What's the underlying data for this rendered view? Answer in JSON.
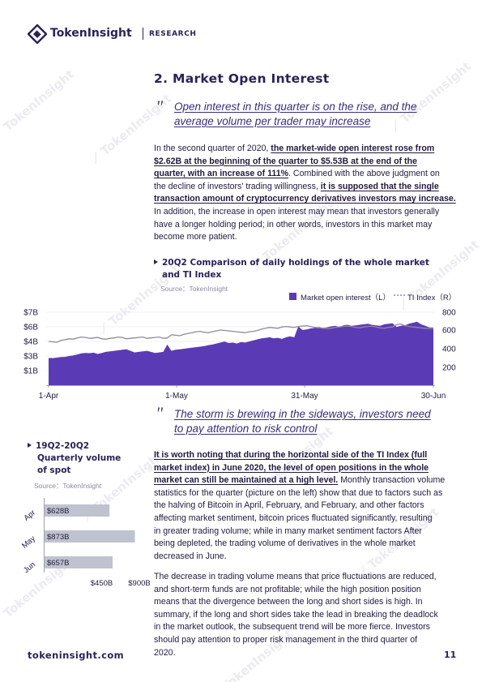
{
  "header": {
    "brand": "TokenInsight",
    "section": "RESEARCH",
    "colors": {
      "brand": "#2c2257"
    }
  },
  "section_title": "2. Market Open Interest",
  "quote1": {
    "line1": "Open interest in this quarter is on the rise, and the",
    "line2": "average volume per trader may increase"
  },
  "para1": {
    "l1_a": "In the second quarter of 2020, ",
    "l1_b": "the market-wide open interest rose from",
    "l2": "$2.62B at the beginning of the quarter to $5.53B at the end of the",
    "l3_a": "quarter, with an increase of 111%",
    "l3_b": ". Combined with the above judgment on",
    "l4_a": "the decline of investors' trading willingness, ",
    "l4_b": "it is supposed that the single",
    "l5": "transaction amount of cryptocurrency derivatives investors may increase.",
    "l6": "In addition, the increase in open interest may mean that investors generally",
    "l7": "have a longer holding period; in other words, investors in this market may",
    "l8": "become more patient."
  },
  "chart1": {
    "title_line1": "20Q2 Comparison of daily holdings of the whole market",
    "title_line2": "and TI Index",
    "source": "Source：TokenInsight",
    "legend_oi": "Market open interest（L）",
    "legend_ti": "TI Index（R）",
    "colors": {
      "area": "#5b3bb5",
      "line": "#8e8b98"
    }
  },
  "chart_data": [
    {
      "type": "area",
      "title": "20Q2 Comparison of daily holdings of the whole market and TI Index",
      "x_ticks": [
        "1-Apr",
        "1-May",
        "31-May",
        "30-Jun"
      ],
      "y_left_ticks": [
        "$7B",
        "$6B",
        "$4B",
        "$3B",
        "$1B"
      ],
      "y_right_ticks": [
        "800",
        "600",
        "400",
        "200"
      ],
      "y_left_range": [
        0,
        7.5
      ],
      "y_right_range": [
        0,
        850
      ],
      "series": [
        {
          "name": "Market open interest（L）",
          "axis": "left",
          "kind": "area",
          "values": [
            2.62,
            2.6,
            2.65,
            2.7,
            2.72,
            2.8,
            2.85,
            2.95,
            3.05,
            3.1,
            3.08,
            3.12,
            3.0,
            3.1,
            3.2,
            3.25,
            3.3,
            3.35,
            3.4,
            3.45,
            3.3,
            3.15,
            3.2,
            3.25,
            3.3,
            3.2,
            3.1,
            3.15,
            3.2,
            3.9,
            3.3,
            3.4,
            3.45,
            3.5,
            3.55,
            3.6,
            3.65,
            3.7,
            3.75,
            3.85,
            3.9,
            4.0,
            4.1,
            4.2,
            4.05,
            4.1,
            4.0,
            4.15,
            4.1,
            4.2,
            4.3,
            4.4,
            4.5,
            4.55,
            4.6,
            4.5,
            4.55,
            4.45,
            4.6,
            4.7,
            4.6,
            5.65,
            5.3,
            5.35,
            5.45,
            5.5,
            5.6,
            5.5,
            5.55,
            5.65,
            5.7,
            5.6,
            5.75,
            5.8,
            5.7,
            5.75,
            5.8,
            5.85,
            5.9,
            5.8,
            5.75,
            5.7,
            5.85,
            5.9,
            5.95,
            5.6,
            5.7,
            5.75,
            5.9,
            6.0,
            6.1,
            5.85,
            5.7,
            5.55,
            5.53
          ]
        },
        {
          "name": "TI Index（R）",
          "axis": "right",
          "kind": "line",
          "values": [
            500,
            495,
            490,
            510,
            520,
            530,
            525,
            540,
            550,
            545,
            535,
            540,
            545,
            530,
            525,
            535,
            540,
            550,
            545,
            530,
            535,
            540,
            545,
            550,
            535,
            540,
            545,
            550,
            535,
            540,
            575,
            570,
            565,
            580,
            590,
            600,
            610,
            615,
            605,
            600,
            610,
            620,
            630,
            625,
            620,
            615,
            610,
            605,
            600,
            610,
            615,
            625,
            640,
            650,
            660,
            655,
            650,
            665,
            670,
            665,
            660,
            670,
            675,
            680,
            670,
            660,
            655,
            650,
            645,
            650,
            660,
            665,
            670,
            675,
            670,
            660,
            655,
            665,
            670,
            675,
            665,
            655,
            650,
            660,
            665,
            690,
            700,
            680,
            670,
            665,
            660,
            655,
            650,
            648,
            645
          ]
        }
      ]
    },
    {
      "type": "bar",
      "orientation": "horizontal",
      "title": "19Q2-20Q2 Quarterly volume of spot",
      "categories": [
        "Apr",
        "May",
        "Jun"
      ],
      "values": [
        628,
        873,
        657
      ],
      "value_labels": [
        "$628B",
        "$873B",
        "$657B"
      ],
      "unit": "$B",
      "x_ticks": [
        "$450B",
        "$900B"
      ],
      "xlim": [
        0,
        900
      ]
    }
  ],
  "quote2": {
    "line1": "The storm is brewing in the sideways, investors need",
    "line2": "to pay attention to risk control"
  },
  "chart2": {
    "title_line1": "19Q2-20Q2",
    "title_line2": "Quarterly volume",
    "title_line3": "of spot",
    "source": "Source：TokenInsight",
    "colors": {
      "bar": "#bfc3cf"
    }
  },
  "para2": {
    "l1": "It is worth noting that during the horizontal side of the TI Index (full",
    "l2": "market index) in June 2020, the level of open positions in the whole",
    "l3_a": "market can still be maintained at a high level.",
    "l3_b": " Monthly transaction volume",
    "l4": "statistics for the quarter (picture on the left) show that due to factors such as",
    "l5": "the halving of Bitcoin in April, February, and February, and other factors",
    "l6": "affecting market sentiment, bitcoin prices fluctuated significantly, resulting",
    "l7": "in greater trading volume; while in many market sentiment factors After",
    "l8": "being depleted, the trading volume of derivatives in the whole market",
    "l9": "decreased in June."
  },
  "para3": {
    "l1": "The decrease in trading volume means that price fluctuations are reduced,",
    "l2": "and short-term funds are not profitable; while the high position position",
    "l3": "means that the divergence between the long and short sides is high. In",
    "l4": "summary, if the long and short sides take the lead in breaking the deadlock",
    "l5": "in the market outlook, the subsequent trend will be more fierce. Investors",
    "l6": "should pay attention to proper risk management in the third quarter of",
    "l7": "2020."
  },
  "footer": {
    "url": "tokeninsight.com",
    "page": "11"
  }
}
